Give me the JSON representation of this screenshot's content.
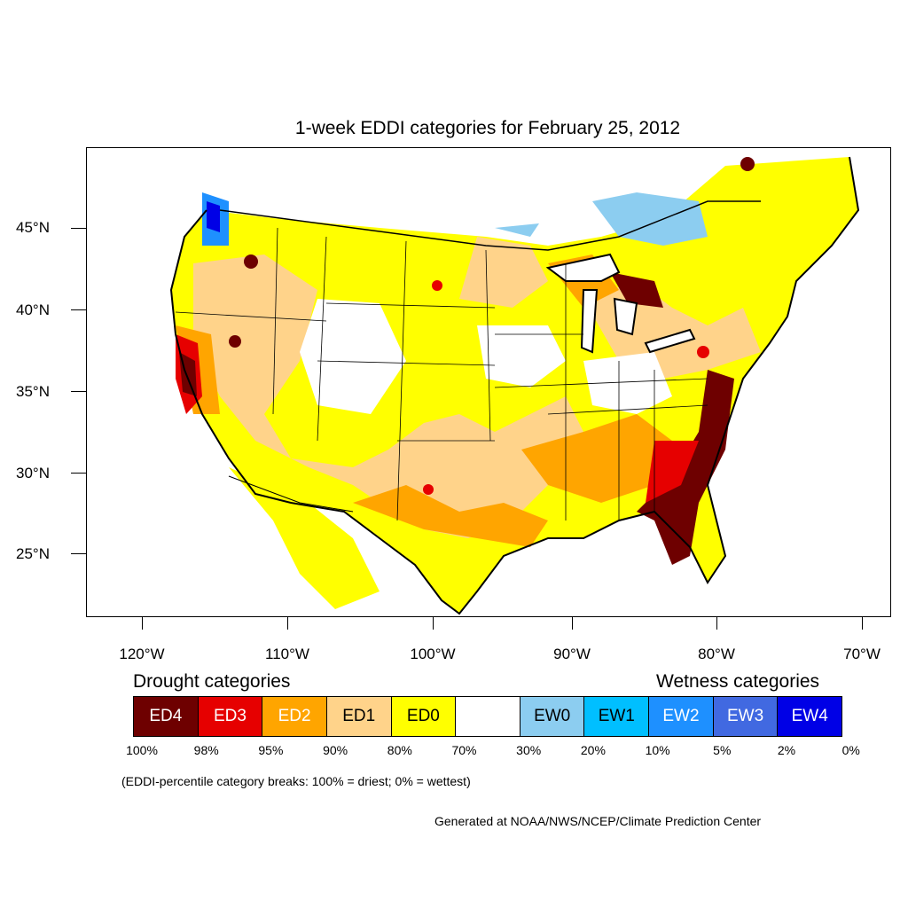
{
  "title": "1-week EDDI categories for February 25, 2012",
  "lat_labels": [
    "45°N",
    "40°N",
    "35°N",
    "30°N",
    "25°N"
  ],
  "lon_labels": [
    "120°W",
    "110°W",
    "100°W",
    "90°W",
    "80°W",
    "70°W"
  ],
  "legend": {
    "drought_title": "Drought categories",
    "wetness_title": "Wetness categories",
    "categories": [
      {
        "label": "ED4",
        "color": "#6e0000",
        "text_color": "#ffffff"
      },
      {
        "label": "ED3",
        "color": "#e60000",
        "text_color": "#ffffff"
      },
      {
        "label": "ED2",
        "color": "#ffa500",
        "text_color": "#ffffff"
      },
      {
        "label": "ED1",
        "color": "#ffd38a",
        "text_color": "#000000"
      },
      {
        "label": "ED0",
        "color": "#ffff00",
        "text_color": "#000000"
      },
      {
        "label": "",
        "color": "#ffffff",
        "text_color": "#000000"
      },
      {
        "label": "EW0",
        "color": "#8ccdf0",
        "text_color": "#000000"
      },
      {
        "label": "EW1",
        "color": "#00bfff",
        "text_color": "#000000"
      },
      {
        "label": "EW2",
        "color": "#1e90ff",
        "text_color": "#ffffff"
      },
      {
        "label": "EW3",
        "color": "#4169e1",
        "text_color": "#ffffff"
      },
      {
        "label": "EW4",
        "color": "#0000e6",
        "text_color": "#ffffff"
      }
    ],
    "percent_breaks": [
      "100%",
      "98%",
      "95%",
      "90%",
      "80%",
      "70%",
      "30%",
      "20%",
      "10%",
      "5%",
      "2%",
      "0%"
    ]
  },
  "note": "(EDDI-percentile category breaks: 100% = driest; 0% = wettest)",
  "credit": "Generated at NOAA/NWS/NCEP/Climate Prediction Center"
}
